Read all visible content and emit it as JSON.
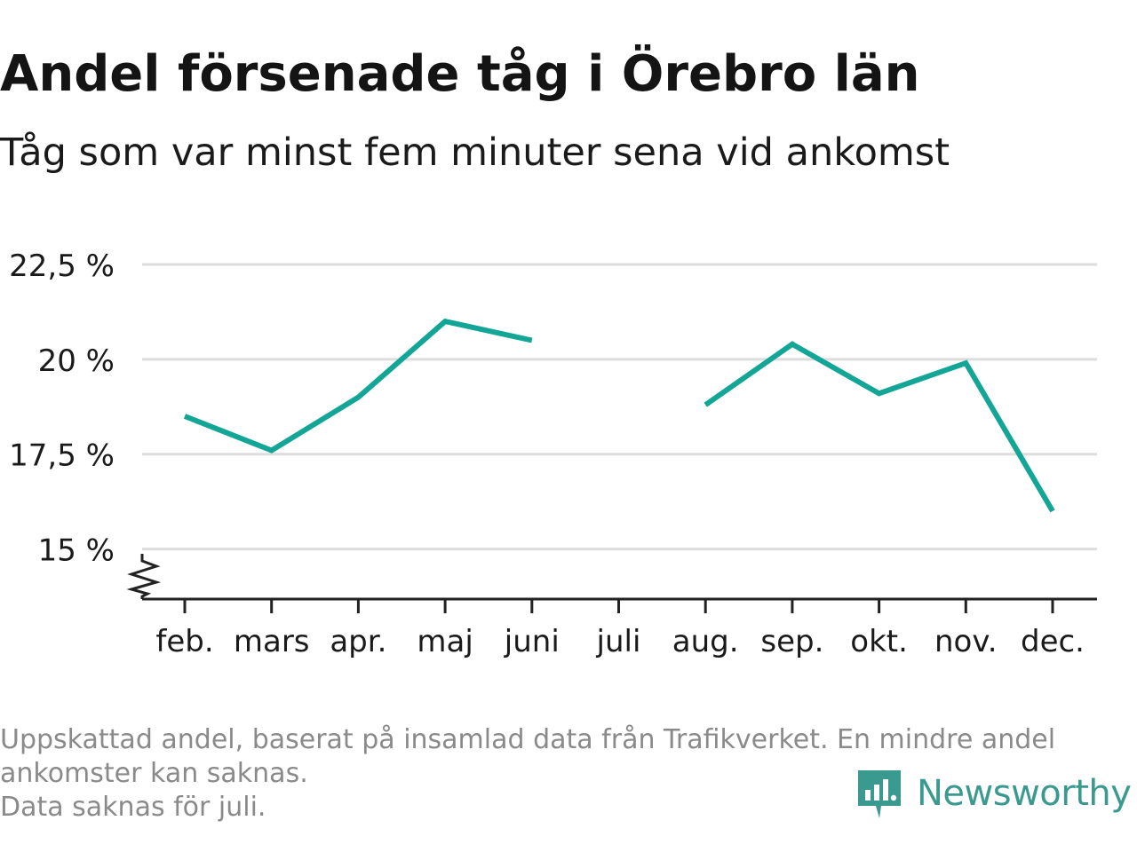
{
  "header": {
    "title": "Andel försenade tåg i Örebro län",
    "subtitle": "Tåg som var minst fem minuter sena vid ankomst"
  },
  "footnote": {
    "line1": "Uppskattad andel, baserat på insamlad data från Trafikverket. En mindre andel",
    "line2": "ankomster kan saknas.",
    "line3": "Data saknas för juli."
  },
  "brand": {
    "name": "Newsworthy",
    "color": "#3a9a8f",
    "icon": "newsworthy-logo-icon"
  },
  "colors": {
    "line": "#13a596",
    "grid": "#dddddd",
    "axis": "#222222",
    "tick_text": "#1a1a1a"
  },
  "chart_data": {
    "type": "line",
    "title": "Andel försenade tåg i Örebro län",
    "subtitle": "Tåg som var minst fem minuter sena vid ankomst",
    "categories": [
      "feb.",
      "mars",
      "apr.",
      "maj",
      "juni",
      "juli",
      "aug.",
      "sep.",
      "okt.",
      "nov.",
      "dec."
    ],
    "series": [
      {
        "values": [
          18.5,
          17.6,
          19.0,
          21.0,
          20.5,
          null,
          18.8,
          20.4,
          19.1,
          19.9,
          16.0
        ]
      }
    ],
    "y_ticks": [
      15,
      17.5,
      20,
      22.5
    ],
    "y_tick_labels": [
      "15 %",
      "17,5 %",
      "20 %",
      "22,5 %"
    ],
    "ylim": [
      13.7,
      22.5
    ],
    "xlabel": "",
    "ylabel": "",
    "grid": true,
    "y_axis_break": true,
    "legend": "none"
  }
}
